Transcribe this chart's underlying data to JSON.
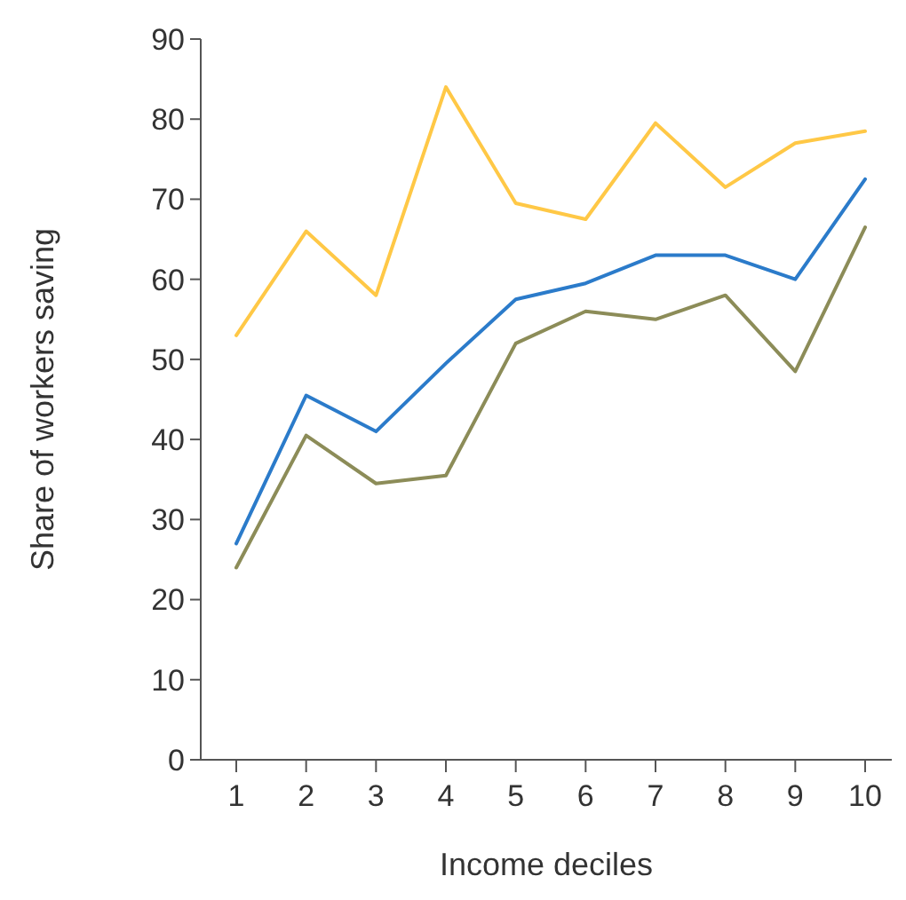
{
  "chart_data": {
    "type": "line",
    "xlabel": "Income deciles",
    "ylabel": "Share of workers saving",
    "categories": [
      "1",
      "2",
      "3",
      "4",
      "5",
      "6",
      "7",
      "8",
      "9",
      "10"
    ],
    "series": [
      {
        "color": "#ffc846",
        "values": [
          53,
          66,
          58,
          84,
          69.5,
          67.5,
          79.5,
          71.5,
          77,
          78.5
        ]
      },
      {
        "color": "#2b7bca",
        "values": [
          27,
          45.5,
          41,
          49.5,
          57.5,
          59.5,
          63,
          63,
          60,
          72.5
        ]
      },
      {
        "color": "#8c8c58",
        "values": [
          24,
          40.5,
          34.5,
          35.5,
          52,
          56,
          55,
          58,
          48.5,
          66.5
        ]
      }
    ],
    "ylim": [
      0,
      90
    ],
    "yticks": [
      0,
      10,
      20,
      30,
      40,
      50,
      60,
      70,
      80,
      90
    ],
    "grid": false,
    "marker": "none",
    "line_style": "solid"
  }
}
